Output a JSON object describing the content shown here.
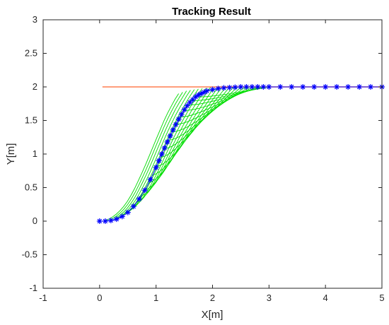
{
  "chart_data": {
    "type": "line",
    "title": "Tracking Result",
    "xlabel": "X[m]",
    "ylabel": "Y[m]",
    "xlim": [
      -1,
      5
    ],
    "ylim": [
      -1,
      3
    ],
    "xticks": [
      -1,
      0,
      1,
      2,
      3,
      4,
      5
    ],
    "yticks": [
      -1,
      -0.5,
      0,
      0.5,
      1,
      1.5,
      2,
      2.5,
      3
    ],
    "xtick_labels": [
      "-1",
      "0",
      "1",
      "2",
      "3",
      "4",
      "5"
    ],
    "ytick_labels": [
      "-1",
      "-0.5",
      "0",
      "0.5",
      "1",
      "1.5",
      "2",
      "2.5",
      "3"
    ],
    "grid": false,
    "series": [
      {
        "role": "reference",
        "color": "#ff7f50",
        "x": [
          0.05,
          5
        ],
        "y": [
          2,
          2
        ]
      },
      {
        "role": "tracked",
        "color": "#0000ff",
        "marker": "*",
        "x": [
          0,
          0.1,
          0.2,
          0.3,
          0.4,
          0.5,
          0.6,
          0.7,
          0.8,
          0.9,
          1.0,
          1.05,
          1.1,
          1.15,
          1.2,
          1.25,
          1.3,
          1.35,
          1.4,
          1.45,
          1.5,
          1.55,
          1.6,
          1.65,
          1.7,
          1.75,
          1.8,
          1.85,
          1.9,
          2.0,
          2.1,
          2.2,
          2.3,
          2.4,
          2.5,
          2.6,
          2.7,
          2.8,
          2.9,
          3.0,
          3.2,
          3.4,
          3.6,
          3.8,
          4.0,
          4.2,
          4.4,
          4.6,
          4.8,
          5.0
        ],
        "y": [
          0,
          0.0,
          0.01,
          0.03,
          0.07,
          0.13,
          0.22,
          0.33,
          0.46,
          0.62,
          0.8,
          0.9,
          1.0,
          1.09,
          1.18,
          1.27,
          1.36,
          1.44,
          1.52,
          1.59,
          1.66,
          1.72,
          1.77,
          1.81,
          1.85,
          1.88,
          1.9,
          1.92,
          1.94,
          1.96,
          1.975,
          1.985,
          1.99,
          1.995,
          2.0,
          2.0,
          2.0,
          2.0,
          2.0,
          2.0,
          2.0,
          2.0,
          2.0,
          2.0,
          2.0,
          2.0,
          2.0,
          2.0,
          2.0,
          2.0
        ]
      }
    ],
    "predicted_trajectories": {
      "color": "#00dd00",
      "count": 24
    },
    "colors": {
      "axes": "#262626",
      "background": "#ffffff"
    }
  }
}
